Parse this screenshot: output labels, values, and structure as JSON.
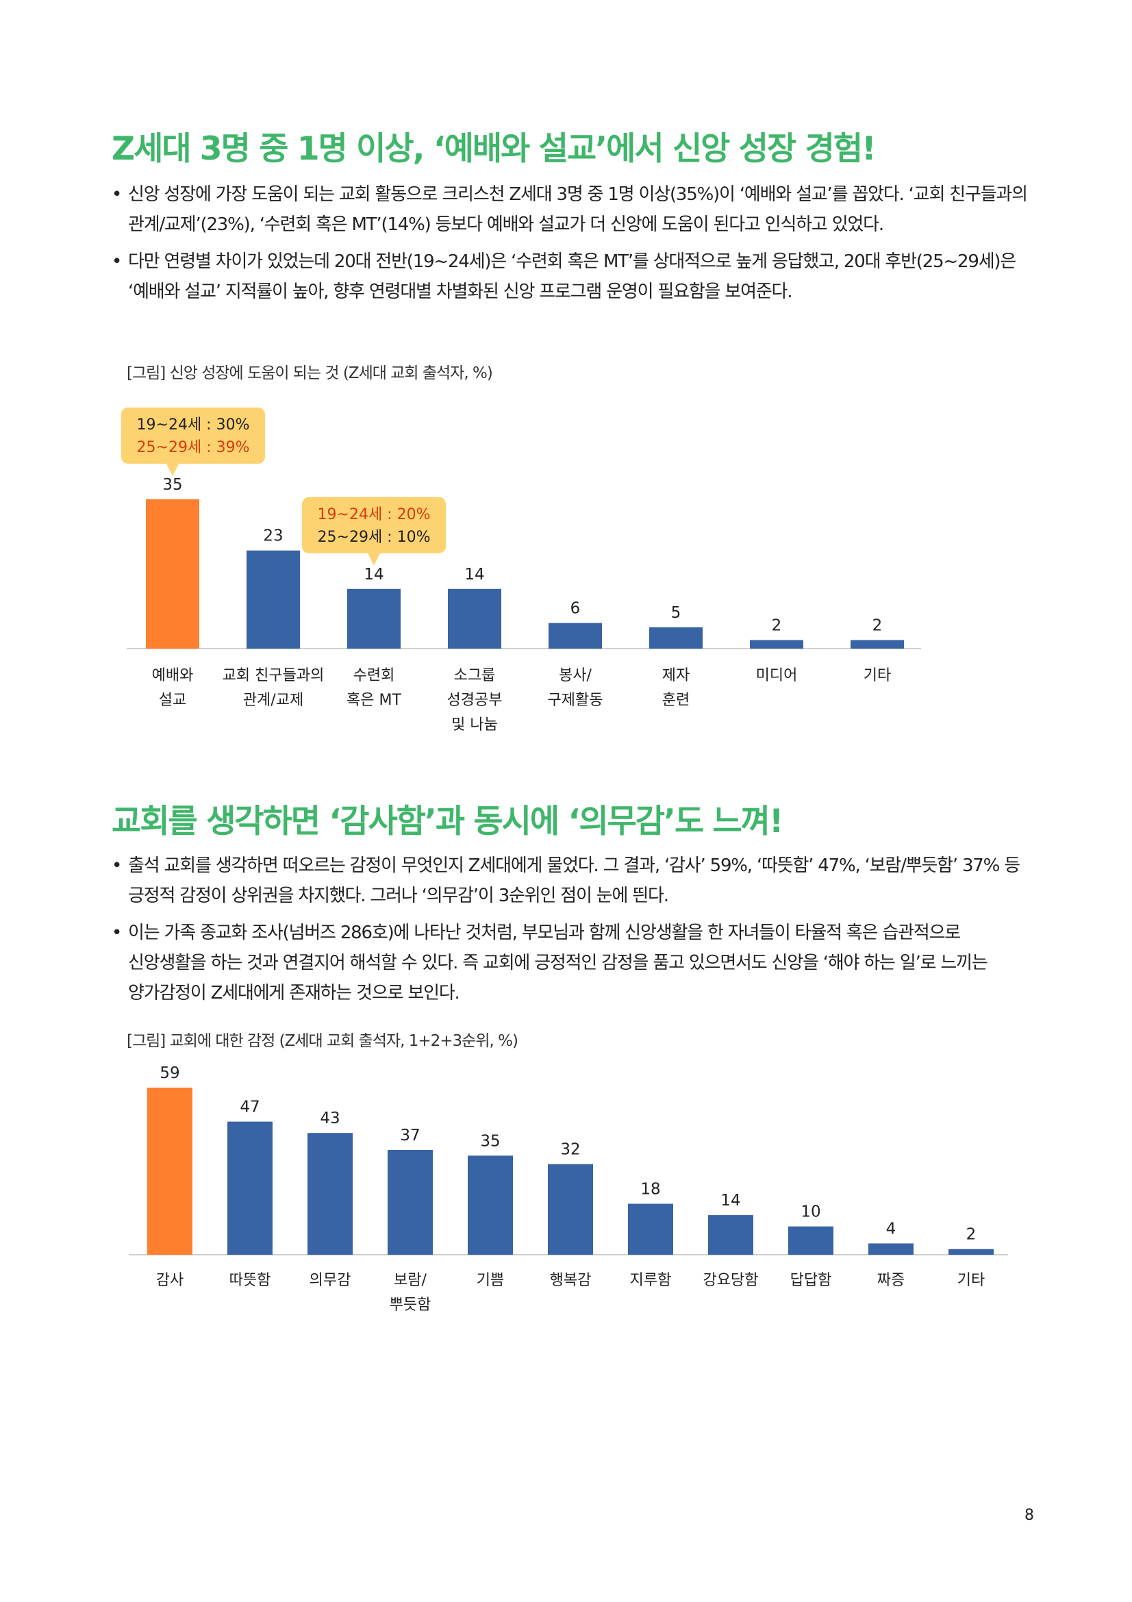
{
  "section1": {
    "heading": "Z세대 3명 중 1명 이상, ‘예배와 설교’에서 신앙 성장 경험!",
    "bullets": [
      "신앙 성장에 가장 도움이 되는 교회 활동으로 크리스천 Z세대 3명 중 1명 이상(35%)이 ‘예배와 설교’를 꼽았다. ‘교회 친구들과의 관계/교제’(23%), ‘수련회 혹은 MT’(14%) 등보다 예배와 설교가 더 신앙에 도움이 된다고 인식하고 있었다.",
      "다만 연령별 차이가 있었는데 20대 전반(19~24세)은 ‘수련회 혹은 MT’를 상대적으로 높게 응답했고, 20대 후반(25~29세)은 ‘예배와 설교’ 지적률이 높아, 향후 연령대별 차별화된 신앙 프로그램 운영이 필요함을 보여준다."
    ],
    "caption": "[그림] 신앙 성장에 도움이 되는 것 (Z세대 교회 출석자, %)"
  },
  "section2": {
    "heading": "교회를 생각하면 ‘감사함’과 동시에 ‘의무감’도 느껴!",
    "bullets": [
      "출석 교회를 생각하면 떠오르는 감정이 무엇인지 Z세대에게 물었다. 그 결과, ‘감사’ 59%, ‘따뜻함’ 47%, ‘보람/뿌듯함’ 37% 등 긍정적 감정이 상위권을 차지했다. 그러나 ‘의무감’이 3순위인 점이 눈에 띈다.",
      "이는 가족 종교화 조사(넘버즈 286호)에 나타난 것처럼, 부모님과 함께 신앙생활을 한 자녀들이 타율적 혹은 습관적으로 신앙생활을 하는 것과 연결지어 해석할 수 있다. 즉 교회에 긍정적인 감정을 품고 있으면서도 신앙을 ‘해야 하는 일’로 느끼는 양가감정이 Z세대에게 존재하는 것으로 보인다."
    ],
    "caption": "[그림] 교회에 대한 감정 (Z세대 교회 출석자, 1+2+3순위, %)"
  },
  "page_number": "8",
  "colors": {
    "highlight": "#fe7f2d",
    "bar": "#3863a4",
    "heading": "#3fb66a",
    "callout": "#fdd270",
    "callout_red": "#d83a10"
  },
  "chart_data": [
    {
      "type": "bar",
      "categories": [
        [
          "예배와",
          "설교"
        ],
        [
          "교회 친구들과의",
          "관계/교제"
        ],
        [
          "수련회",
          "혹은 MT"
        ],
        [
          "소그룹",
          "성경공부",
          "및 나눔"
        ],
        [
          "봉사/",
          "구제활동"
        ],
        [
          "제자",
          "훈련"
        ],
        [
          "미디어"
        ],
        [
          "기타"
        ]
      ],
      "values": [
        35,
        23,
        14,
        14,
        6,
        5,
        2,
        2
      ],
      "highlight_index": 0,
      "ylim": [
        0,
        35
      ],
      "callouts": [
        {
          "bar_index": 0,
          "lines": [
            "19~24세 : 30%",
            "25~29세 : 39%"
          ],
          "emphasis_line": 1
        },
        {
          "bar_index": 2,
          "lines": [
            "19~24세 : 20%",
            "25~29세 : 10%"
          ],
          "emphasis_line": 0
        }
      ]
    },
    {
      "type": "bar",
      "categories": [
        [
          "감사"
        ],
        [
          "따뜻함"
        ],
        [
          "의무감"
        ],
        [
          "보람/",
          "뿌듯함"
        ],
        [
          "기쁨"
        ],
        [
          "행복감"
        ],
        [
          "지루함"
        ],
        [
          "강요당함"
        ],
        [
          "답답함"
        ],
        [
          "짜증"
        ],
        [
          "기타"
        ]
      ],
      "values": [
        59,
        47,
        43,
        37,
        35,
        32,
        18,
        14,
        10,
        4,
        2
      ],
      "highlight_index": 0,
      "ylim": [
        0,
        59
      ]
    }
  ]
}
